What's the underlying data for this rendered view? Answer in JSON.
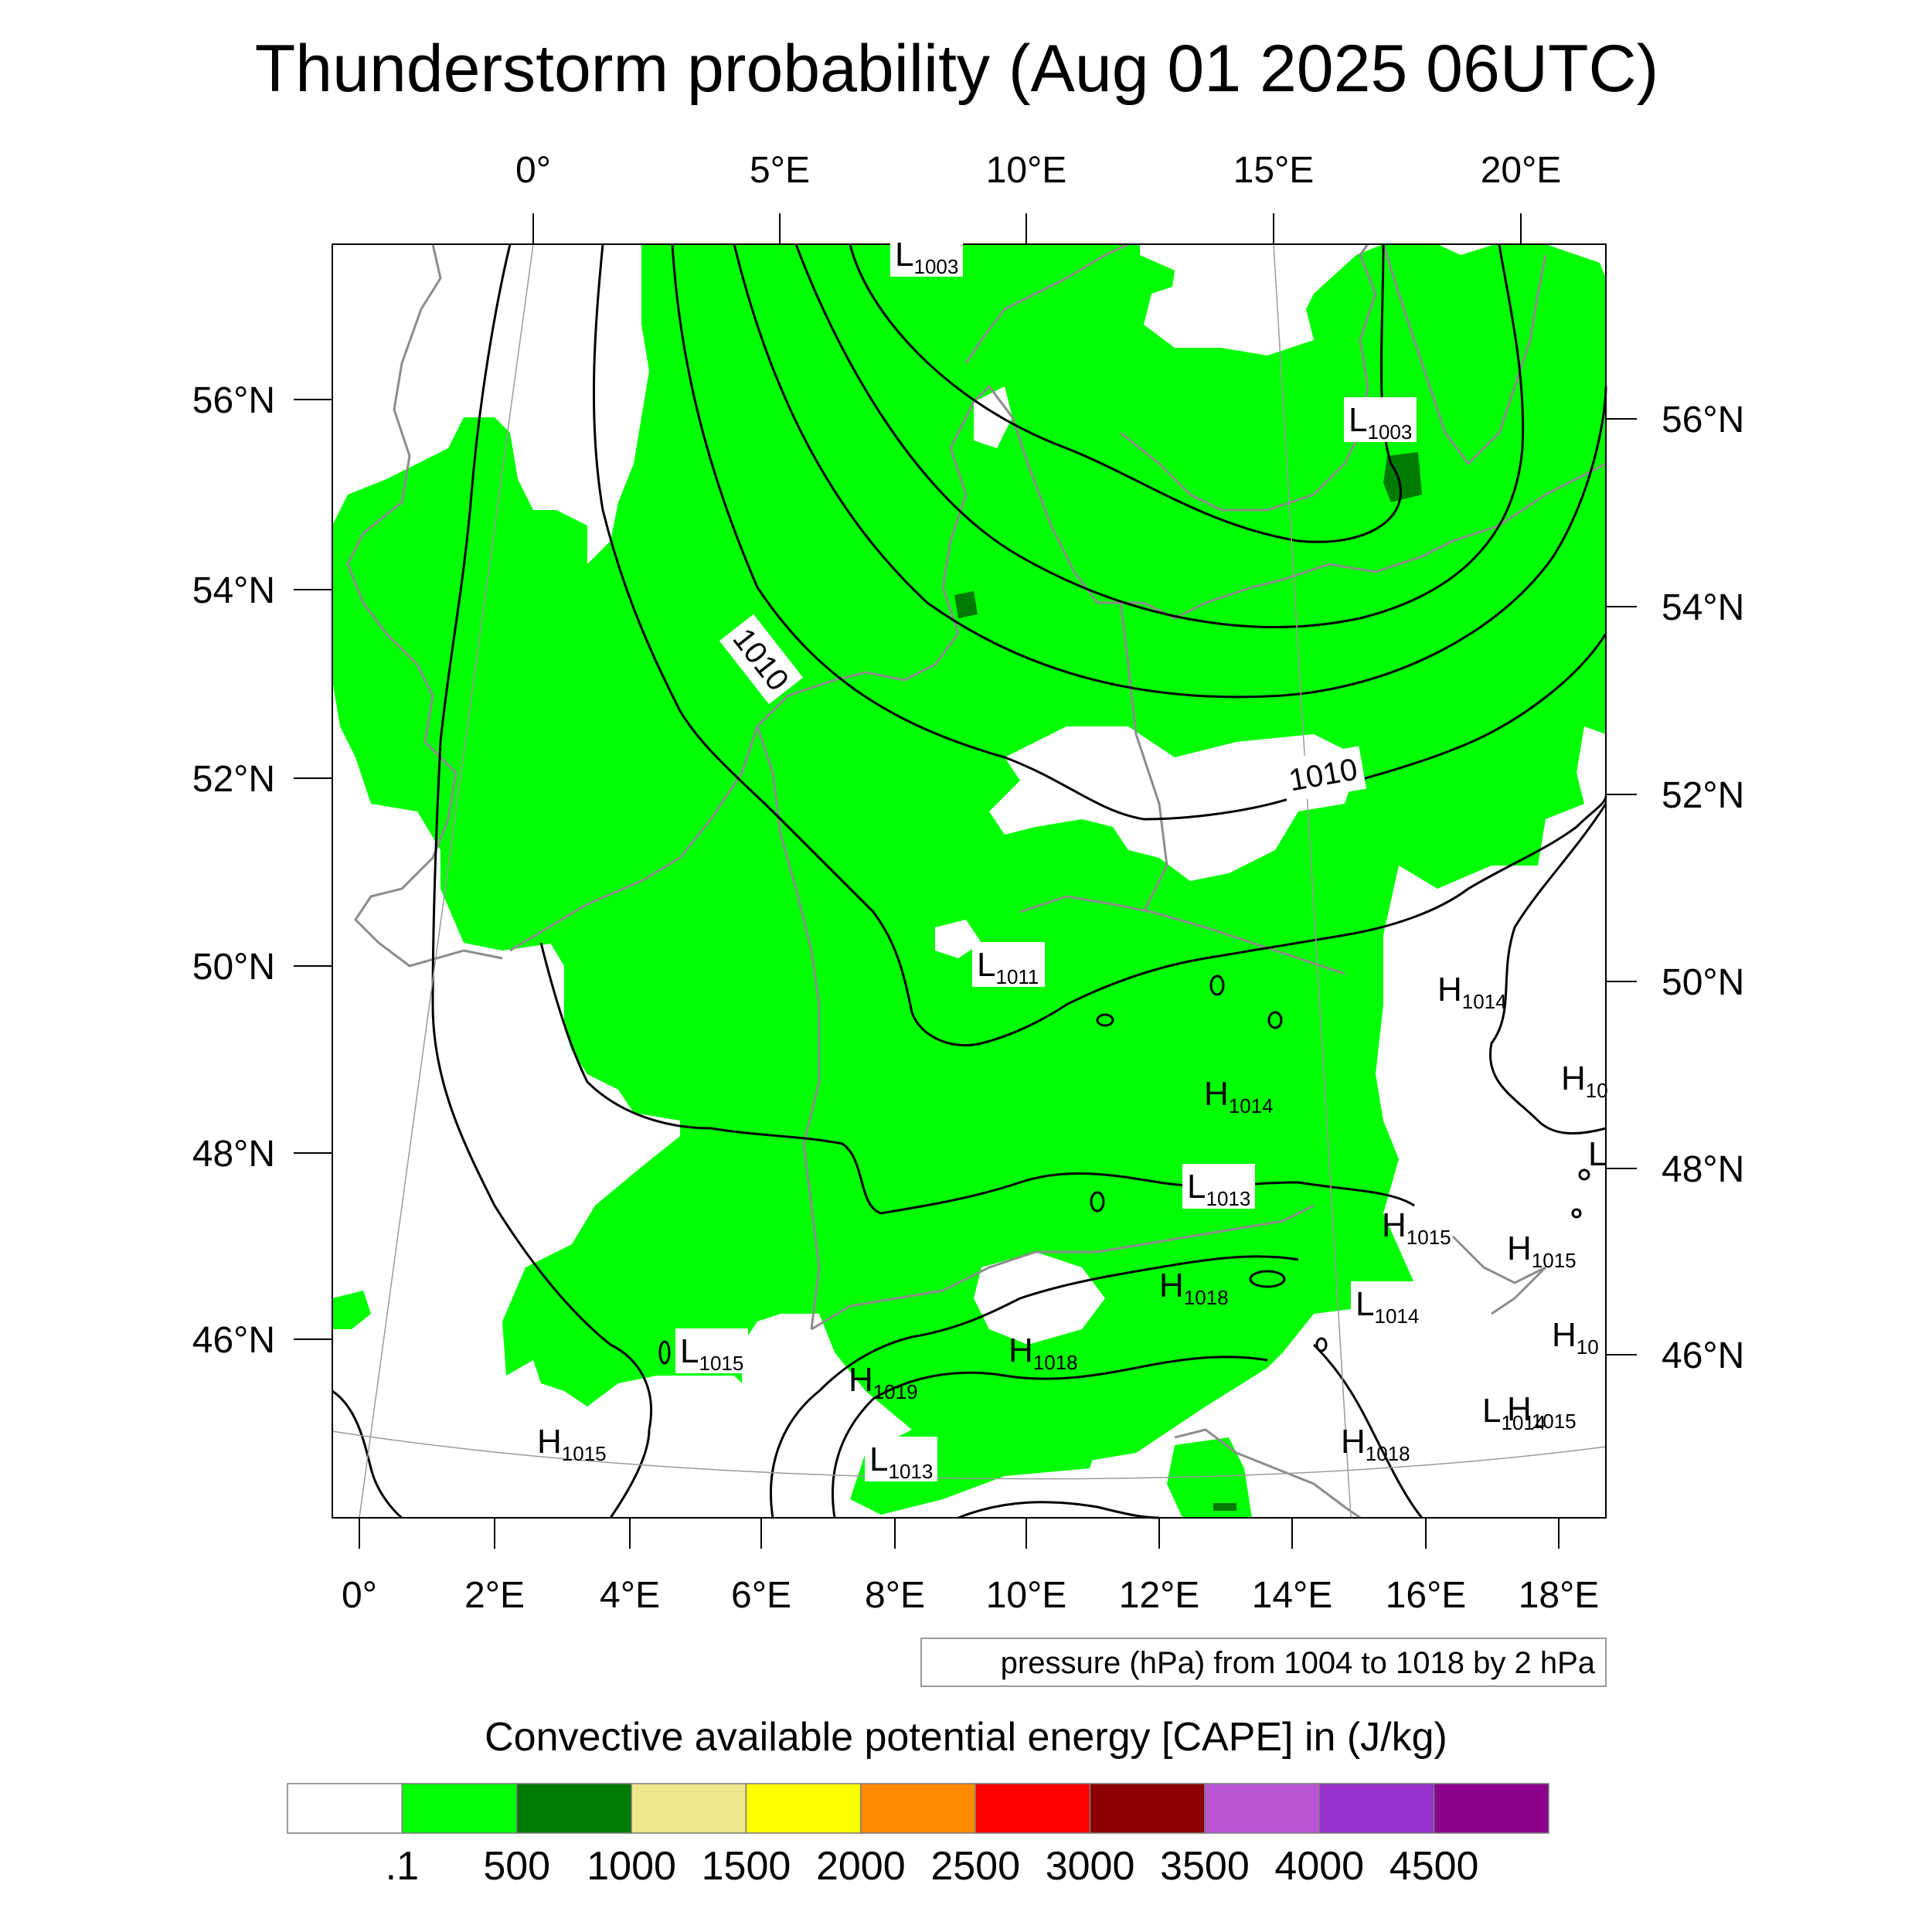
{
  "title": "Thunderstorm probability (Aug 01 2025 06UTC)",
  "top_lon_labels": [
    "0°",
    "5°E",
    "10°E",
    "15°E",
    "20°E"
  ],
  "bottom_lon_labels": [
    "0°",
    "2°E",
    "4°E",
    "6°E",
    "8°E",
    "10°E",
    "12°E",
    "14°E",
    "16°E",
    "18°E"
  ],
  "left_lat_labels": [
    "56°N",
    "54°N",
    "52°N",
    "50°N",
    "48°N",
    "46°N"
  ],
  "right_lat_labels": [
    "56°N",
    "54°N",
    "52°N",
    "50°N",
    "48°N",
    "46°N"
  ],
  "contour_info": "pressure (hPa) from 1004 to 1018 by 2 hPa",
  "contour_labels": [
    "1010",
    "1010"
  ],
  "pressure_marks": [
    {
      "t": "L",
      "v": "1003"
    },
    {
      "t": "L",
      "v": "1003"
    },
    {
      "t": "L",
      "v": "1011"
    },
    {
      "t": "H",
      "v": "1014"
    },
    {
      "t": "H",
      "v": "1014"
    },
    {
      "t": "H",
      "v": "10"
    },
    {
      "t": "L",
      "v": ""
    },
    {
      "t": "L",
      "v": "1013"
    },
    {
      "t": "H",
      "v": "1015"
    },
    {
      "t": "H",
      "v": "1015"
    },
    {
      "t": "H",
      "v": "1018"
    },
    {
      "t": "L",
      "v": "1014"
    },
    {
      "t": "L",
      "v": "1015"
    },
    {
      "t": "H",
      "v": "1018"
    },
    {
      "t": "H",
      "v": "1019"
    },
    {
      "t": "H",
      "v": "10"
    },
    {
      "t": "L",
      "v": "1014"
    },
    {
      "t": "H",
      "v": "1015"
    },
    {
      "t": "H",
      "v": "1015"
    },
    {
      "t": "H",
      "v": "1018"
    },
    {
      "t": "L",
      "v": "1013"
    }
  ],
  "colorbar": {
    "title": "Convective available potential energy [CAPE] in (J/kg)",
    "colors": [
      "#ffffff",
      "#00ff00",
      "#007a00",
      "#f0e68c",
      "#ffff00",
      "#ff8c00",
      "#ff0000",
      "#8b0000",
      "#ba55d3",
      "#9932cc",
      "#8b008b"
    ],
    "labels": [
      ".1",
      "500",
      "1000",
      "1500",
      "2000",
      "2500",
      "3000",
      "3500",
      "4000",
      "4500"
    ]
  }
}
